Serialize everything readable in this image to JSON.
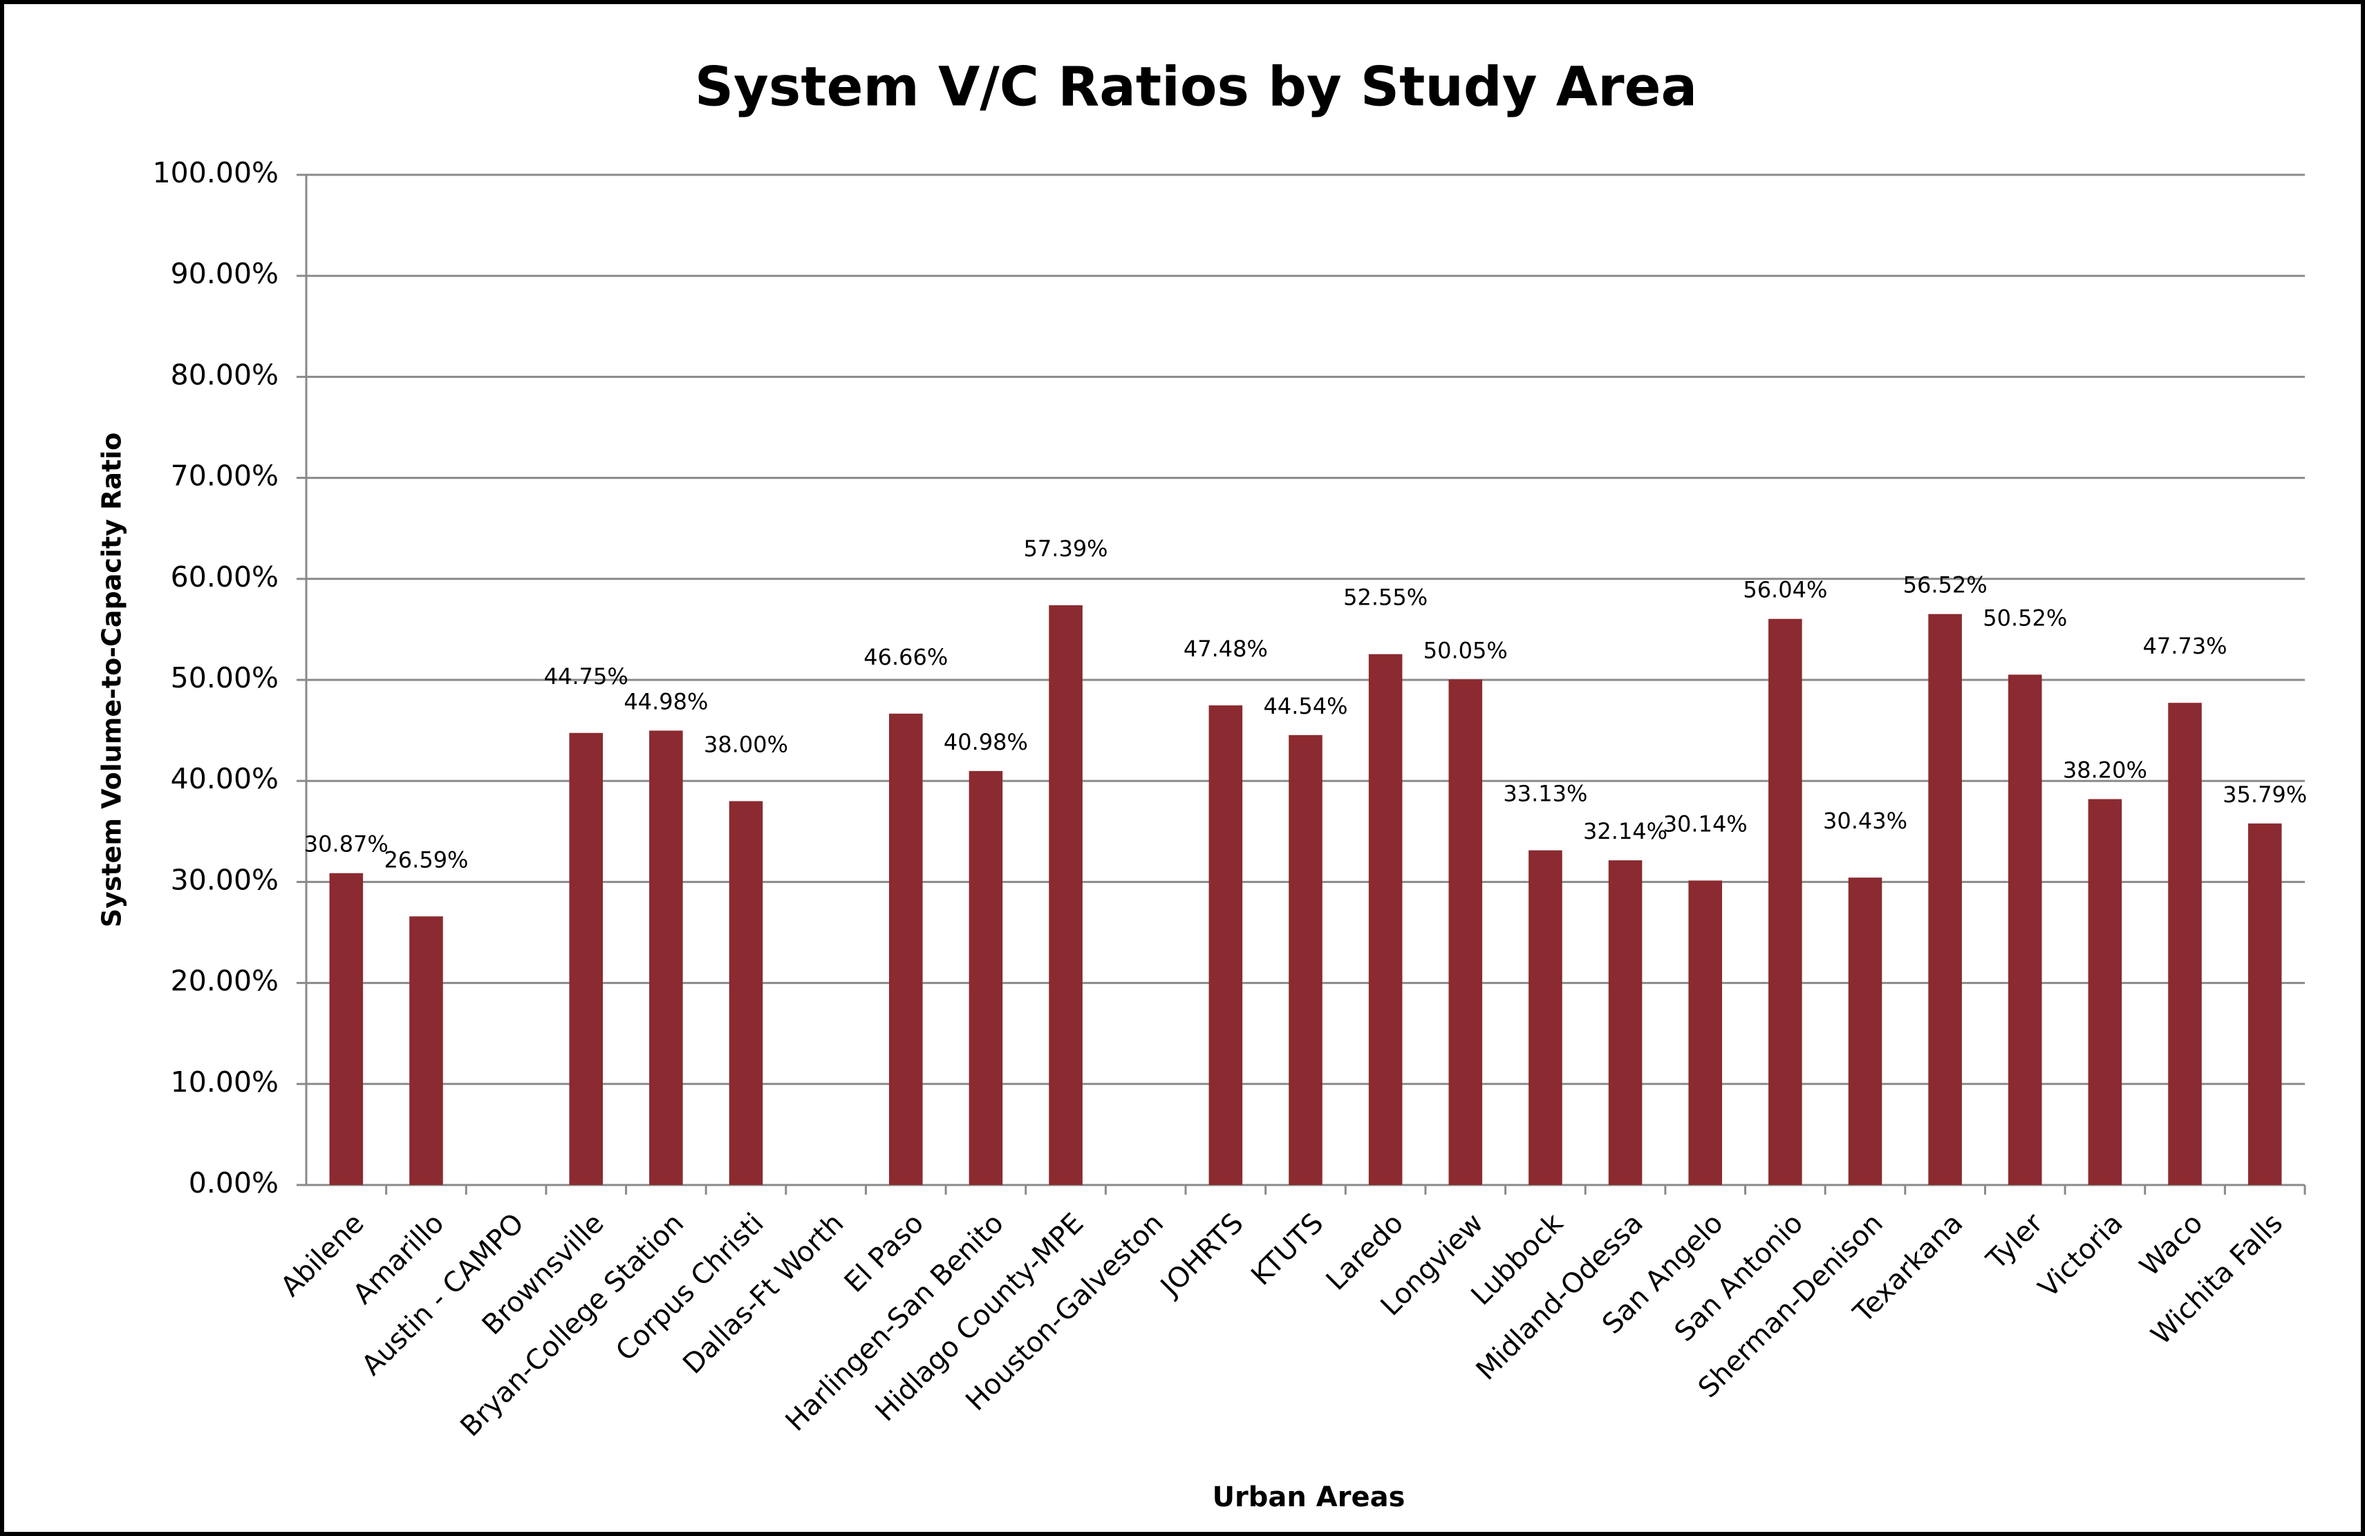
{
  "chart_data": {
    "type": "bar",
    "title": "System V/C Ratios by Study Area",
    "x_label": "Urban Areas",
    "y_label": "System Volume-to-Capacity Ratio",
    "categories": [
      "Abilene",
      "Amarillo",
      "Austin - CAMPO",
      "Brownsville",
      "Bryan-College Station",
      "Corpus Christi",
      "Dallas-Ft Worth",
      "El Paso",
      "Harlingen-San Benito",
      "Hidlago County-MPE",
      "Houston-Galveston",
      "JOHRTS",
      "KTUTS",
      "Laredo",
      "Longview",
      "Lubbock",
      "Midland-Odessa",
      "San Angelo",
      "San Antonio",
      "Sherman-Denison",
      "Texarkana",
      "Tyler",
      "Victoria",
      "Waco",
      "Wichita Falls"
    ],
    "values": [
      30.87,
      26.59,
      null,
      44.75,
      44.98,
      38.0,
      null,
      46.66,
      40.98,
      57.39,
      null,
      47.48,
      44.54,
      52.55,
      50.05,
      33.13,
      32.14,
      30.14,
      56.04,
      30.43,
      56.52,
      50.52,
      38.2,
      47.73,
      35.79
    ],
    "value_labels": [
      "30.87%",
      "26.59%",
      null,
      "44.75%",
      "44.98%",
      "38.00%",
      null,
      "46.66%",
      "40.98%",
      "57.39%",
      null,
      "47.48%",
      "44.54%",
      "52.55%",
      "50.05%",
      "33.13%",
      "32.14%",
      "30.14%",
      "56.04%",
      "30.43%",
      "56.52%",
      "50.52%",
      "38.20%",
      "47.73%",
      "35.79%"
    ],
    "color": "#8b2a30",
    "ylim": [
      0,
      100
    ],
    "yticks": [
      {
        "value": 0,
        "label": "0.00%"
      },
      {
        "value": 10,
        "label": "10.00%"
      },
      {
        "value": 20,
        "label": "20.00%"
      },
      {
        "value": 30,
        "label": "30.00%"
      },
      {
        "value": 40,
        "label": "40.00%"
      },
      {
        "value": 50,
        "label": "50.00%"
      },
      {
        "value": 60,
        "label": "60.00%"
      },
      {
        "value": 70,
        "label": "70.00%"
      },
      {
        "value": 80,
        "label": "80.00%"
      },
      {
        "value": 90,
        "label": "90.00%"
      },
      {
        "value": 100,
        "label": "100.00%"
      }
    ],
    "grid": true
  }
}
